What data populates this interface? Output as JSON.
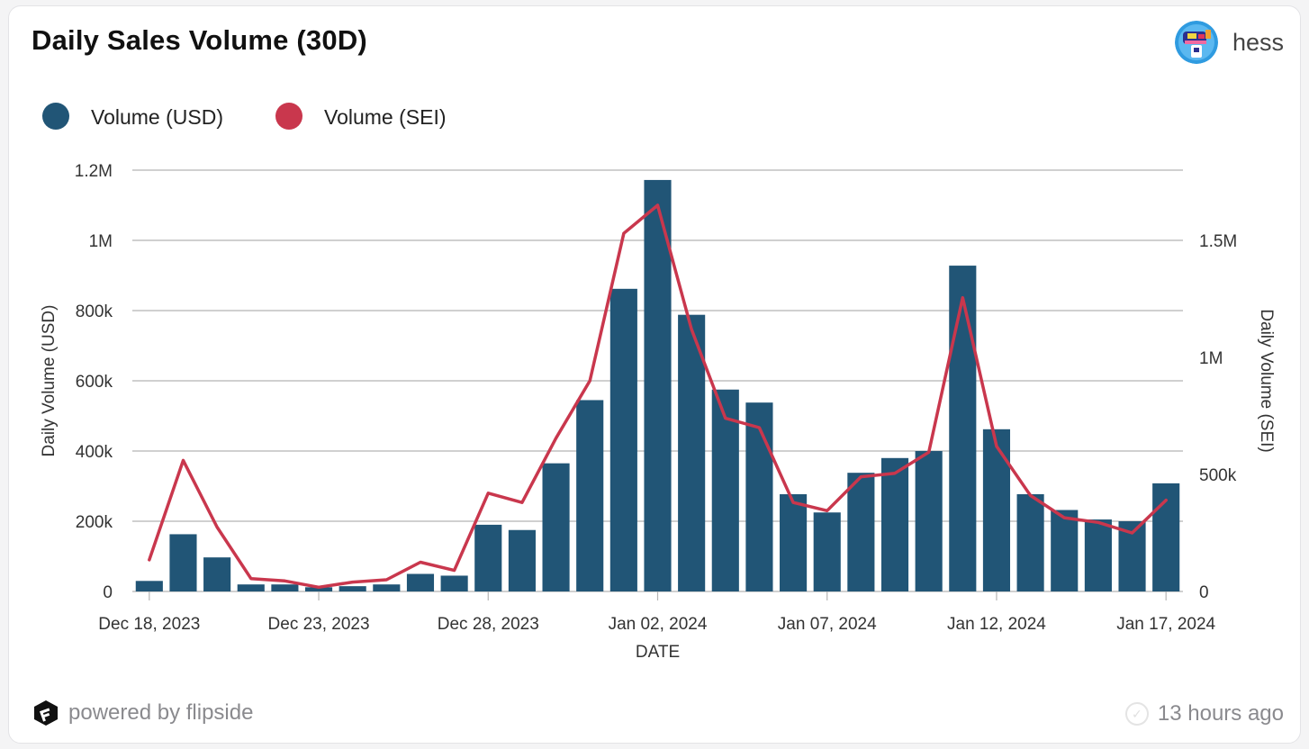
{
  "header": {
    "title": "Daily Sales Volume (30D)",
    "username": "hess"
  },
  "footer": {
    "powered_by": "powered by flipside",
    "updated": "13 hours ago"
  },
  "colors": {
    "bar": "#215576",
    "line": "#c9374d",
    "grid": "#b5b5b5",
    "text": "#333333"
  },
  "icons": {
    "avatar": "user-avatar",
    "brand": "flipside-logo-icon",
    "status": "check-circle-icon"
  },
  "chart_data": {
    "type": "bar",
    "title": "Daily Sales Volume (30D)",
    "xlabel": "DATE",
    "ylabel": "Daily Volume (USD)",
    "y2label": "Daily Volume (SEI)",
    "ylim": [
      0,
      1200000
    ],
    "y2lim": [
      0,
      1800000
    ],
    "y_ticks": [
      0,
      200000,
      400000,
      600000,
      800000,
      1000000,
      1200000
    ],
    "y_tick_labels": [
      "0",
      "200k",
      "400k",
      "600k",
      "800k",
      "1M",
      "1.2M"
    ],
    "y2_ticks": [
      0,
      500000,
      1000000,
      1500000
    ],
    "y2_tick_labels": [
      "0",
      "500k",
      "1M",
      "1.5M"
    ],
    "x_tick_labels": [
      "Dec 18, 2023",
      "Dec 23, 2023",
      "Dec 28, 2023",
      "Jan 02, 2024",
      "Jan 07, 2024",
      "Jan 12, 2024",
      "Jan 17, 2024"
    ],
    "x_tick_index": [
      0,
      5,
      10,
      15,
      20,
      25,
      30
    ],
    "legend_position": "top-left",
    "grid": true,
    "categories": [
      "2023-12-18",
      "2023-12-19",
      "2023-12-20",
      "2023-12-21",
      "2023-12-22",
      "2023-12-23",
      "2023-12-24",
      "2023-12-25",
      "2023-12-26",
      "2023-12-27",
      "2023-12-28",
      "2023-12-29",
      "2023-12-30",
      "2023-12-31",
      "2024-01-01",
      "2024-01-02",
      "2024-01-03",
      "2024-01-04",
      "2024-01-05",
      "2024-01-06",
      "2024-01-07",
      "2024-01-08",
      "2024-01-09",
      "2024-01-10",
      "2024-01-11",
      "2024-01-12",
      "2024-01-13",
      "2024-01-14",
      "2024-01-15",
      "2024-01-16",
      "2024-01-17"
    ],
    "series": [
      {
        "name": "Volume (USD)",
        "type": "bar",
        "axis": "left",
        "values": [
          30000,
          163000,
          97000,
          20000,
          20000,
          12000,
          15000,
          20000,
          50000,
          45000,
          190000,
          175000,
          365000,
          545000,
          862000,
          1172000,
          788000,
          575000,
          538000,
          277000,
          225000,
          338000,
          380000,
          400000,
          928000,
          462000,
          277000,
          232000,
          205000,
          200000,
          308000
        ]
      },
      {
        "name": "Volume (SEI)",
        "type": "line",
        "axis": "right",
        "values": [
          135000,
          560000,
          275000,
          55000,
          45000,
          18000,
          40000,
          50000,
          125000,
          90000,
          420000,
          380000,
          655000,
          900000,
          1530000,
          1650000,
          1120000,
          740000,
          700000,
          380000,
          345000,
          490000,
          505000,
          595000,
          1255000,
          620000,
          410000,
          315000,
          295000,
          250000,
          390000
        ]
      }
    ]
  }
}
